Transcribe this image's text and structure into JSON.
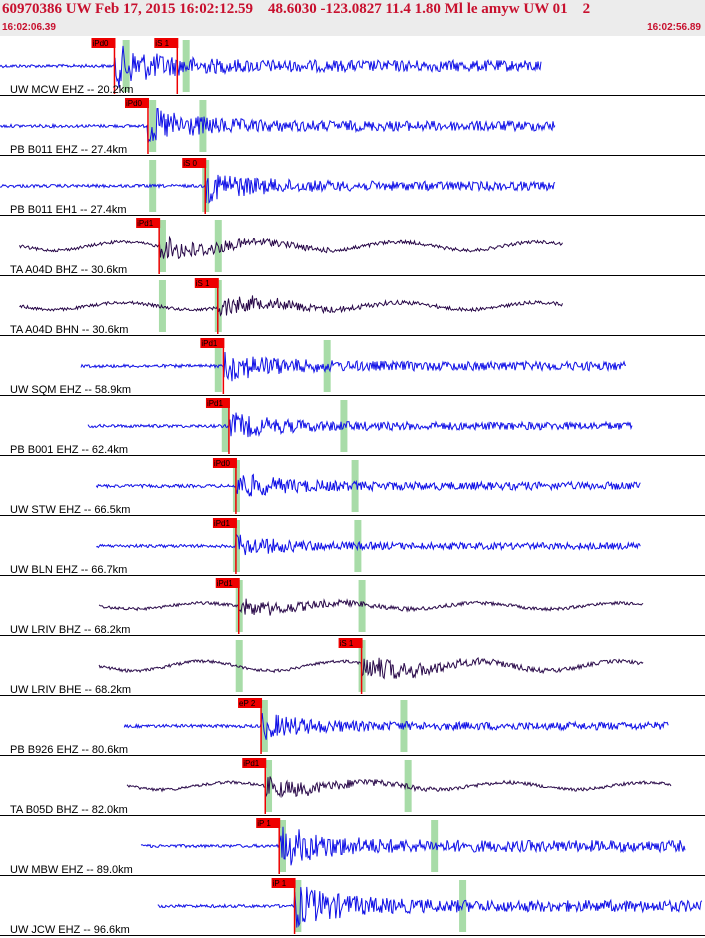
{
  "header": {
    "title": "60970386 UW Feb 17, 2015 16:02:12.59    48.6030 -123.0827 11.4 1.80 Ml le amyw UW 01    2",
    "time_start": "16:02:06.39",
    "time_end": "16:02:56.89"
  },
  "colors": {
    "short_period": "#1010e6",
    "broadband": "#2a0a4a",
    "pick": "#ee0000",
    "window": "#a8dca8",
    "header_text": "#c8102e"
  },
  "chart_data": {
    "type": "line",
    "traces": [
      {
        "label": "UW MCW EHZ -- 20.2km",
        "kind": "sp",
        "start": 0.0,
        "end": 38.8,
        "pick_labels": [
          "iPd0",
          "iS 1"
        ],
        "picks": [
          8.2,
          12.7
        ],
        "windows": [
          9.0,
          13.3
        ],
        "amp": 0.8
      },
      {
        "label": "PB B011 EHZ -- 27.4km",
        "kind": "sp",
        "start": 0.0,
        "end": 39.8,
        "pick_labels": [
          "iPd0"
        ],
        "picks": [
          10.6
        ],
        "windows": [
          10.9,
          14.5
        ],
        "amp": 0.7
      },
      {
        "label": "PB B011 EH1 -- 27.4km",
        "kind": "sp",
        "start": 0.0,
        "end": 39.8,
        "pick_labels": [
          "iS 0"
        ],
        "picks": [
          14.7
        ],
        "windows": [
          10.9,
          14.7
        ],
        "amp": 0.6
      },
      {
        "label": "TA A04D BHZ -- 30.6km",
        "kind": "bb",
        "start": 1.4,
        "end": 40.3,
        "pick_labels": [
          "iPd1"
        ],
        "picks": [
          11.4
        ],
        "windows": [
          11.6,
          15.6
        ],
        "amp": 0.7
      },
      {
        "label": "TA A04D BHN -- 30.6km",
        "kind": "bb",
        "start": 1.4,
        "end": 40.3,
        "pick_labels": [
          "iS 1"
        ],
        "picks": [
          15.6
        ],
        "windows": [
          11.6,
          15.6
        ],
        "amp": 0.6
      },
      {
        "label": "UW SQM EHZ -- 58.9km",
        "kind": "sp",
        "start": 5.8,
        "end": 44.9,
        "pick_labels": [
          "iPd1"
        ],
        "picks": [
          16.0
        ],
        "windows": [
          15.6,
          23.4
        ],
        "amp": 0.6
      },
      {
        "label": "PB B001 EHZ -- 62.4km",
        "kind": "sp",
        "start": 6.3,
        "end": 45.3,
        "pick_labels": [
          "iPd1"
        ],
        "picks": [
          16.4
        ],
        "windows": [
          16.1,
          24.6
        ],
        "amp": 0.5
      },
      {
        "label": "UW STW EHZ -- 66.5km",
        "kind": "sp",
        "start": 6.9,
        "end": 45.9,
        "pick_labels": [
          "iPd0"
        ],
        "picks": [
          16.9
        ],
        "windows": [
          16.9,
          25.4
        ],
        "amp": 0.5
      },
      {
        "label": "UW BLN EHZ -- 66.7km",
        "kind": "sp",
        "start": 6.9,
        "end": 45.9,
        "pick_labels": [
          "iPd1"
        ],
        "picks": [
          16.9
        ],
        "windows": [
          16.9,
          25.6
        ],
        "amp": 0.4
      },
      {
        "label": "UW LRIV BHZ -- 68.2km",
        "kind": "bb",
        "start": 7.1,
        "end": 46.1,
        "pick_labels": [
          "iPd1"
        ],
        "picks": [
          17.1
        ],
        "windows": [
          17.1,
          25.9
        ],
        "amp": 0.5
      },
      {
        "label": "UW LRIV BHE -- 68.2km",
        "kind": "bb",
        "start": 7.1,
        "end": 46.1,
        "pick_labels": [
          "iS 1"
        ],
        "picks": [
          25.9
        ],
        "windows": [
          17.1,
          25.9
        ],
        "amp": 0.8
      },
      {
        "label": "PB B926 EHZ -- 80.6km",
        "kind": "sp",
        "start": 8.9,
        "end": 47.9,
        "pick_labels": [
          "eP 2"
        ],
        "picks": [
          18.7
        ],
        "windows": [
          18.9,
          28.9
        ],
        "amp": 0.5
      },
      {
        "label": "TA B05D BHZ -- 82.0km",
        "kind": "bb",
        "start": 9.1,
        "end": 48.1,
        "pick_labels": [
          "iPd1"
        ],
        "picks": [
          19.0
        ],
        "windows": [
          19.2,
          29.2
        ],
        "amp": 0.6
      },
      {
        "label": "UW MBW EHZ -- 89.0km",
        "kind": "sp",
        "start": 10.1,
        "end": 49.1,
        "pick_labels": [
          "iP 1"
        ],
        "picks": [
          20.0
        ],
        "windows": [
          20.2,
          31.1
        ],
        "amp": 0.8
      },
      {
        "label": "UW JCW EHZ -- 96.6km",
        "kind": "sp",
        "start": 11.3,
        "end": 50.3,
        "pick_labels": [
          "iP 1"
        ],
        "picks": [
          21.1
        ],
        "windows": [
          21.3,
          33.1
        ],
        "amp": 0.8
      }
    ],
    "x_range_seconds": [
      0,
      50.5
    ],
    "grid": false
  }
}
